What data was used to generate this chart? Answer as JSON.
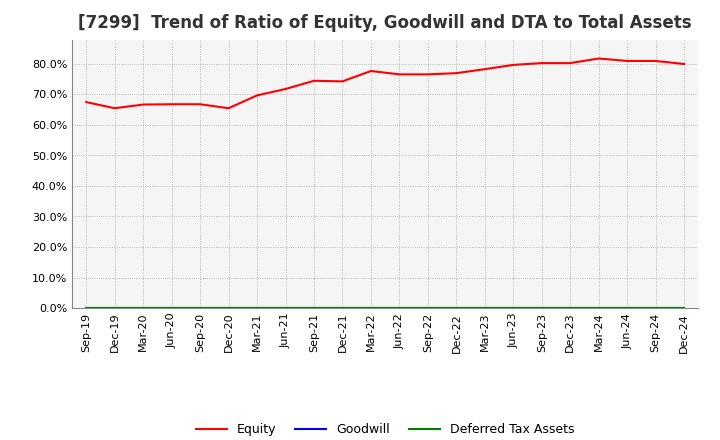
{
  "title": "[7299]  Trend of Ratio of Equity, Goodwill and DTA to Total Assets",
  "x_labels": [
    "Sep-19",
    "Dec-19",
    "Mar-20",
    "Jun-20",
    "Sep-20",
    "Dec-20",
    "Mar-21",
    "Jun-21",
    "Sep-21",
    "Dec-21",
    "Mar-22",
    "Jun-22",
    "Sep-22",
    "Dec-22",
    "Mar-23",
    "Jun-23",
    "Sep-23",
    "Dec-23",
    "Mar-24",
    "Jun-24",
    "Sep-24",
    "Dec-24"
  ],
  "equity": [
    0.675,
    0.655,
    0.667,
    0.668,
    0.668,
    0.655,
    0.697,
    0.718,
    0.745,
    0.743,
    0.777,
    0.766,
    0.766,
    0.77,
    0.783,
    0.797,
    0.803,
    0.803,
    0.818,
    0.81,
    0.81,
    0.8
  ],
  "goodwill": [
    0.0,
    0.0,
    0.0,
    0.0,
    0.0,
    0.0,
    0.0,
    0.0,
    0.0,
    0.0,
    0.0,
    0.0,
    0.0,
    0.0,
    0.0,
    0.0,
    0.0,
    0.0,
    0.0,
    0.0,
    0.0,
    0.0
  ],
  "dta": [
    0.0,
    0.0,
    0.0,
    0.0,
    0.0,
    0.0,
    0.0,
    0.0,
    0.0,
    0.0,
    0.0,
    0.0,
    0.0,
    0.0,
    0.0,
    0.0,
    0.0,
    0.0,
    0.0,
    0.0,
    0.0,
    0.0
  ],
  "equity_color": "#ff0000",
  "goodwill_color": "#0000ff",
  "dta_color": "#008000",
  "ylim": [
    0.0,
    0.88
  ],
  "yticks": [
    0.0,
    0.1,
    0.2,
    0.3,
    0.4,
    0.5,
    0.6,
    0.7,
    0.8
  ],
  "background_color": "#ffffff",
  "plot_bg_color": "#f5f5f5",
  "grid_color": "#aaaaaa",
  "title_fontsize": 12,
  "tick_fontsize": 8,
  "legend_labels": [
    "Equity",
    "Goodwill",
    "Deferred Tax Assets"
  ],
  "legend_fontsize": 9
}
